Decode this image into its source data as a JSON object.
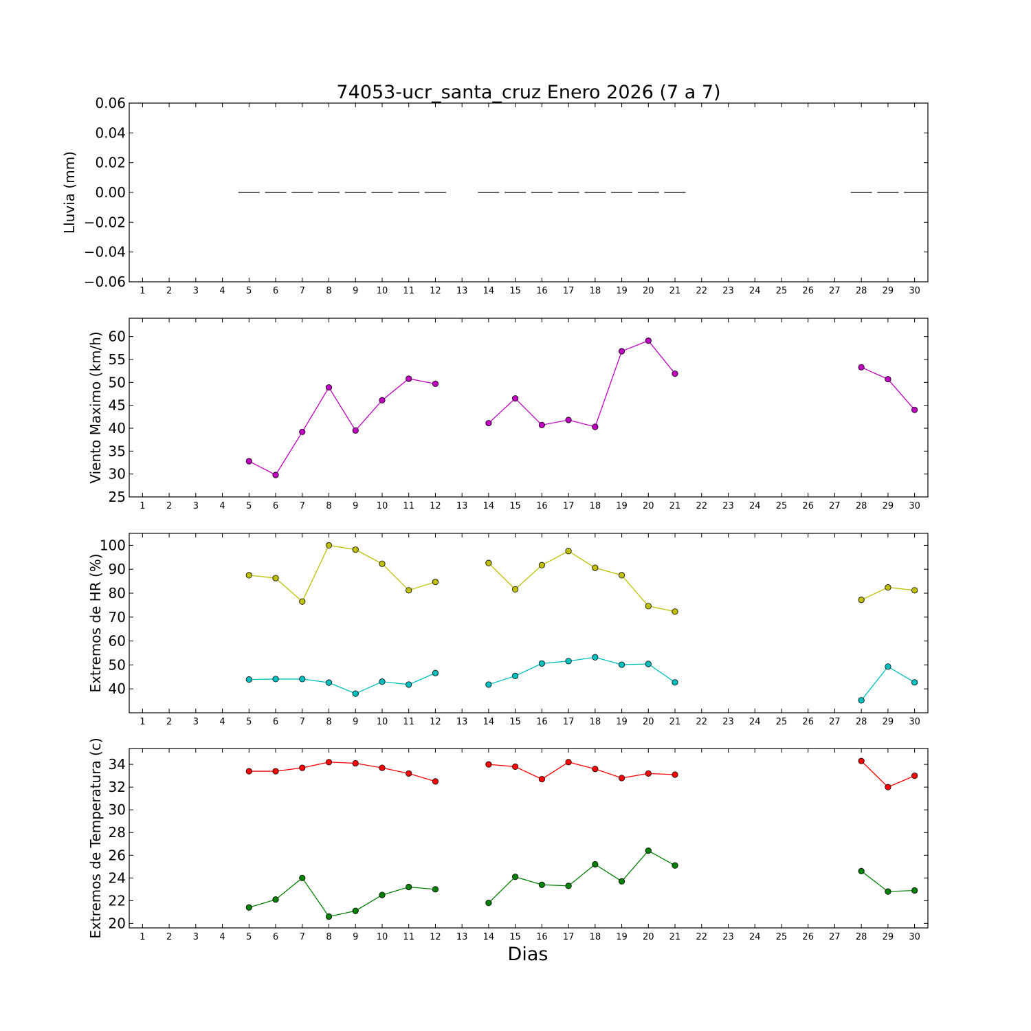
{
  "chart_data": [
    {
      "type": "bar",
      "title": "74053-ucr_santa_cruz Enero 2026  (7 a 7)",
      "xlabel": "",
      "ylabel": "Lluvia (mm)",
      "ylim": [
        -0.06,
        0.06
      ],
      "xlim": [
        0.5,
        30.5
      ],
      "y_tick_labels": [
        "−0.06",
        "−0.04",
        "−0.02",
        "0.00",
        "0.02",
        "0.04",
        "0.06"
      ],
      "x_ticks": [
        1,
        2,
        3,
        4,
        5,
        6,
        7,
        8,
        9,
        10,
        11,
        12,
        13,
        14,
        15,
        16,
        17,
        18,
        19,
        20,
        21,
        22,
        23,
        24,
        25,
        26,
        27,
        28,
        29,
        30
      ],
      "grid": false,
      "color": "#000000",
      "series": [
        {
          "x": [
            5,
            6,
            7,
            8,
            9,
            10,
            11,
            12,
            14,
            15,
            16,
            17,
            18,
            19,
            20,
            21,
            28,
            29,
            30
          ],
          "values": [
            0,
            0,
            0,
            0,
            0,
            0,
            0,
            0,
            0,
            0,
            0,
            0,
            0,
            0,
            0,
            0,
            0,
            0,
            0
          ]
        }
      ]
    },
    {
      "type": "line",
      "ylabel": "Viento Maximo (km/h)",
      "ylim": [
        25,
        64
      ],
      "xlim": [
        0.5,
        30.5
      ],
      "y_ticks": [
        25,
        30,
        35,
        40,
        45,
        50,
        55,
        60
      ],
      "x_ticks": [
        1,
        2,
        3,
        4,
        5,
        6,
        7,
        8,
        9,
        10,
        11,
        12,
        13,
        14,
        15,
        16,
        17,
        18,
        19,
        20,
        21,
        22,
        23,
        24,
        25,
        26,
        27,
        28,
        29,
        30
      ],
      "grid": false,
      "series": [
        {
          "color": "#bf00bf",
          "x": [
            5,
            6,
            7,
            8,
            9,
            10,
            11,
            12,
            14,
            15,
            16,
            17,
            18,
            19,
            20,
            21,
            28,
            29,
            30
          ],
          "values": [
            32.8,
            29.8,
            39.2,
            48.9,
            39.5,
            46.1,
            50.8,
            49.7,
            41.1,
            46.5,
            40.7,
            41.8,
            40.3,
            56.8,
            59.1,
            51.9,
            53.3,
            50.7,
            44
          ]
        }
      ]
    },
    {
      "type": "line",
      "ylabel": "Extremos de HR (%)",
      "ylim": [
        30,
        105
      ],
      "xlim": [
        0.5,
        30.5
      ],
      "y_ticks": [
        40,
        50,
        60,
        70,
        80,
        90,
        100
      ],
      "x_ticks": [
        1,
        2,
        3,
        4,
        5,
        6,
        7,
        8,
        9,
        10,
        11,
        12,
        13,
        14,
        15,
        16,
        17,
        18,
        19,
        20,
        21,
        22,
        23,
        24,
        25,
        26,
        27,
        28,
        29,
        30
      ],
      "grid": false,
      "series": [
        {
          "color": "#bfbf00",
          "x": [
            5,
            6,
            7,
            8,
            9,
            10,
            11,
            12,
            14,
            15,
            16,
            17,
            18,
            19,
            20,
            21,
            28,
            29,
            30
          ],
          "values": [
            87.5,
            86.3,
            76.5,
            100,
            98.2,
            92.3,
            81.2,
            84.7,
            92.6,
            81.6,
            91.7,
            97.6,
            90.6,
            87.5,
            74.6,
            72.3,
            77.2,
            82.4,
            81.2
          ]
        },
        {
          "color": "#00bfbf",
          "x": [
            5,
            6,
            7,
            8,
            9,
            10,
            11,
            12,
            14,
            15,
            16,
            17,
            18,
            19,
            20,
            21,
            28,
            29,
            30
          ],
          "values": [
            43.9,
            44.1,
            44.1,
            42.6,
            38,
            43,
            41.8,
            46.6,
            41.8,
            45.4,
            50.6,
            51.6,
            53.2,
            50.1,
            50.4,
            42.7,
            35.2,
            49.3,
            42.7
          ]
        }
      ]
    },
    {
      "type": "line",
      "ylabel": "Extremos de Temperatura (c)",
      "xlabel": "Dias",
      "ylim": [
        19.6,
        35.4
      ],
      "xlim": [
        0.5,
        30.5
      ],
      "y_ticks": [
        20,
        22,
        24,
        26,
        28,
        30,
        32,
        34
      ],
      "x_ticks": [
        1,
        2,
        3,
        4,
        5,
        6,
        7,
        8,
        9,
        10,
        11,
        12,
        13,
        14,
        15,
        16,
        17,
        18,
        19,
        20,
        21,
        22,
        23,
        24,
        25,
        26,
        27,
        28,
        29,
        30
      ],
      "grid": false,
      "series": [
        {
          "color": "#ff0000",
          "x": [
            5,
            6,
            7,
            8,
            9,
            10,
            11,
            12,
            14,
            15,
            16,
            17,
            18,
            19,
            20,
            21,
            28,
            29,
            30
          ],
          "values": [
            33.4,
            33.4,
            33.7,
            34.2,
            34.1,
            33.7,
            33.2,
            32.5,
            34,
            33.8,
            32.7,
            34.2,
            33.6,
            32.8,
            33.2,
            33.1,
            34.3,
            32,
            33
          ]
        },
        {
          "color": "#008000",
          "x": [
            5,
            6,
            7,
            8,
            9,
            10,
            11,
            12,
            14,
            15,
            16,
            17,
            18,
            19,
            20,
            21,
            28,
            29,
            30
          ],
          "values": [
            21.4,
            22.1,
            24,
            20.6,
            21.1,
            22.5,
            23.2,
            23,
            21.8,
            24.1,
            23.4,
            23.3,
            25.2,
            23.7,
            26.4,
            25.1,
            24.6,
            22.8,
            22.9
          ]
        }
      ]
    }
  ]
}
